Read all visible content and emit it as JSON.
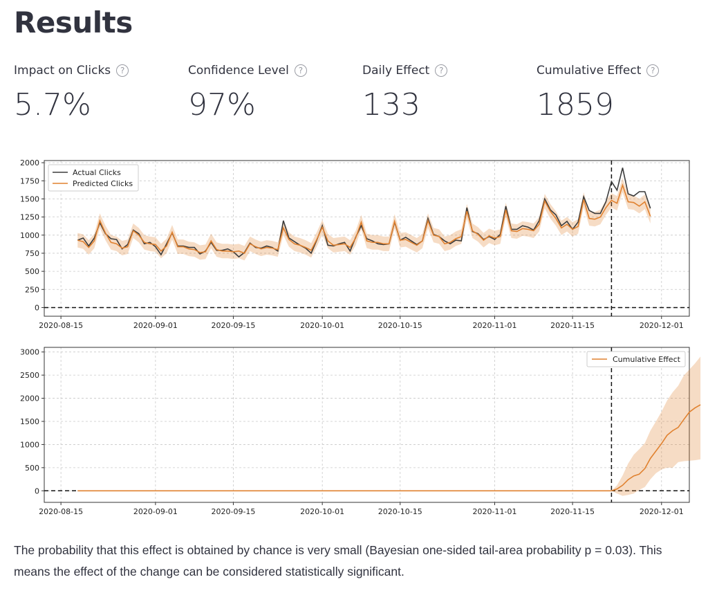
{
  "page": {
    "title": "Results"
  },
  "metrics": [
    {
      "label": "Impact on Clicks",
      "value": "5.7%",
      "help_icon": "question-circle-icon"
    },
    {
      "label": "Confidence Level",
      "value": "97%",
      "help_icon": "question-circle-icon"
    },
    {
      "label": "Daily Effect",
      "value": "133",
      "help_icon": "question-circle-icon"
    },
    {
      "label": "Cumulative Effect",
      "value": "1859",
      "help_icon": "question-circle-icon"
    }
  ],
  "summary": "The probability that this effect is obtained by chance is very small (Bayesian one-sided tail-area probability p = 0.03). This means the effect of the change can be considered statistically significant.",
  "chart_data": [
    {
      "type": "line",
      "x_start": "2020-08-18",
      "x_ticks": [
        "2020-08-15",
        "2020-09-01",
        "2020-09-15",
        "2020-10-01",
        "2020-10-15",
        "2020-11-01",
        "2020-11-15",
        "2020-12-01"
      ],
      "x_tick_dates": [
        "2020-08-15",
        "2020-09-01",
        "2020-09-15",
        "2020-10-01",
        "2020-10-15",
        "2020-11-01",
        "2020-11-15",
        "2020-12-01"
      ],
      "xlim": [
        "2020-08-12",
        "2020-12-06"
      ],
      "ylim": [
        -120,
        2030
      ],
      "y_ticks": [
        0,
        250,
        500,
        750,
        1000,
        1250,
        1500,
        1750,
        2000
      ],
      "intervention_date": "2020-11-22",
      "grid": true,
      "legend": "top-left",
      "series": [
        {
          "name": "Actual Clicks",
          "color": "#3b3b3b",
          "values": [
            930,
            960,
            850,
            960,
            1170,
            1020,
            950,
            940,
            810,
            870,
            1070,
            1020,
            880,
            900,
            840,
            730,
            880,
            1030,
            850,
            850,
            830,
            830,
            740,
            780,
            900,
            790,
            790,
            810,
            770,
            700,
            760,
            890,
            830,
            820,
            850,
            830,
            780,
            1200,
            960,
            910,
            860,
            820,
            750,
            930,
            1130,
            860,
            850,
            880,
            900,
            780,
            970,
            1130,
            950,
            920,
            880,
            870,
            880,
            1180,
            930,
            970,
            920,
            870,
            920,
            1230,
            1010,
            980,
            920,
            880,
            930,
            920,
            1380,
            1050,
            1020,
            940,
            980,
            940,
            1010,
            1400,
            1080,
            1080,
            1130,
            1110,
            1070,
            1200,
            1500,
            1350,
            1280,
            1130,
            1190,
            1080,
            1180,
            1530,
            1340,
            1300,
            1300,
            1460,
            1740,
            1620,
            1930,
            1570,
            1540,
            1600,
            1600,
            1370
          ]
        },
        {
          "name": "Predicted Clicks",
          "color": "#e0812f",
          "values": [
            930,
            910,
            830,
            920,
            1200,
            1030,
            900,
            880,
            820,
            840,
            1060,
            1000,
            900,
            880,
            870,
            780,
            850,
            1040,
            840,
            840,
            810,
            800,
            760,
            770,
            920,
            800,
            780,
            780,
            770,
            780,
            750,
            880,
            840,
            810,
            830,
            820,
            800,
            1100,
            940,
            880,
            860,
            830,
            790,
            940,
            1110,
            920,
            860,
            870,
            880,
            830,
            960,
            1180,
            920,
            900,
            900,
            880,
            880,
            1190,
            930,
            940,
            900,
            860,
            920,
            1200,
            1000,
            980,
            880,
            900,
            950,
            980,
            1330,
            1060,
            1010,
            930,
            990,
            960,
            980,
            1350,
            1060,
            1050,
            1090,
            1080,
            1060,
            1150,
            1470,
            1330,
            1230,
            1100,
            1150,
            1080,
            1120,
            1490,
            1230,
            1220,
            1250,
            1380,
            1480,
            1440,
            1690,
            1460,
            1450,
            1400,
            1460,
            1260
          ]
        }
      ],
      "band_halfwidth": 100
    },
    {
      "type": "line",
      "x_start": "2020-11-22",
      "x_ticks": [
        "2020-08-15",
        "2020-09-01",
        "2020-09-15",
        "2020-10-01",
        "2020-10-15",
        "2020-11-01",
        "2020-11-15",
        "2020-12-01"
      ],
      "x_tick_dates": [
        "2020-08-15",
        "2020-09-01",
        "2020-09-15",
        "2020-10-01",
        "2020-10-15",
        "2020-11-01",
        "2020-11-15",
        "2020-12-01"
      ],
      "xlim": [
        "2020-08-12",
        "2020-12-06"
      ],
      "ylim": [
        -250,
        3100
      ],
      "y_ticks": [
        0,
        500,
        1000,
        1500,
        2000,
        2500,
        3000
      ],
      "intervention_date": "2020-11-22",
      "pre_period_start": "2020-08-18",
      "grid": true,
      "legend": "top-right",
      "series": [
        {
          "name": "Cumulative Effect",
          "color": "#e0812f",
          "values": [
            0,
            40,
            120,
            240,
            320,
            360,
            480,
            700,
            860,
            1020,
            1200,
            1300,
            1370,
            1540,
            1700,
            1790,
            1860
          ],
          "lower": [
            0,
            -60,
            -110,
            -90,
            -60,
            20,
            80,
            250,
            380,
            460,
            500,
            500,
            620,
            640,
            650,
            660,
            680
          ],
          "upper": [
            0,
            120,
            330,
            590,
            780,
            900,
            1030,
            1300,
            1500,
            1710,
            1950,
            2130,
            2270,
            2490,
            2620,
            2750,
            2900
          ]
        }
      ]
    }
  ]
}
